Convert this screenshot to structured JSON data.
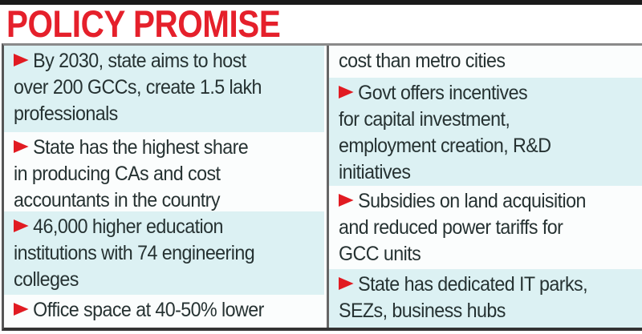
{
  "title": "POLICY PROMISE",
  "accent_color": "#e5202b",
  "bullet_icon": "red-arrowhead",
  "left_column": [
    {
      "lines": [
        "By 2030, state aims to host",
        "over 200 GCCs, create 1.5 lakh",
        "professionals"
      ],
      "bullet": true
    },
    {
      "lines": [
        "State has the highest share",
        "in producing CAs and cost",
        "accountants in the country"
      ],
      "bullet": true
    },
    {
      "lines": [
        "46,000 higher education",
        "institutions with 74 engineering",
        "colleges"
      ],
      "bullet": true
    },
    {
      "lines": [
        "Office space at 40-50% lower"
      ],
      "bullet": true
    }
  ],
  "right_column": [
    {
      "lines": [
        "cost than metro cities"
      ],
      "bullet": false
    },
    {
      "lines": [
        "Govt offers incentives",
        "for capital investment,",
        "employment creation, R&D",
        "initiatives"
      ],
      "bullet": true
    },
    {
      "lines": [
        "Subsidies on land acquisition",
        "and reduced power tariffs for",
        "GCC units"
      ],
      "bullet": true
    },
    {
      "lines": [
        "State has dedicated IT parks,",
        "SEZs, business hubs"
      ],
      "bullet": true
    }
  ]
}
